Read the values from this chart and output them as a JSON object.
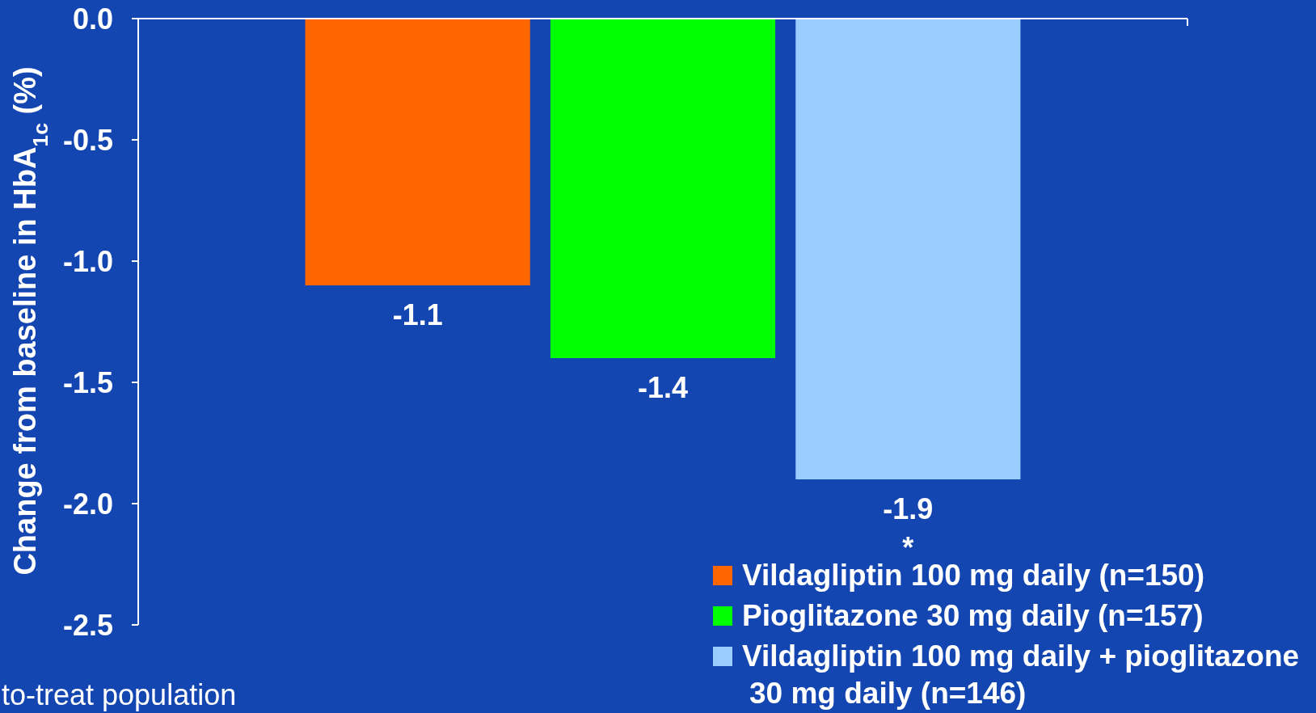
{
  "chart_data": {
    "type": "bar",
    "ylabel": "Change from baseline in HbA$_{1c}$ (%)",
    "categories": [
      null
    ],
    "series": [
      {
        "name": "Vildagliptin 100 mg daily (n=150)",
        "color": "#ff6600",
        "values": [
          -1.1
        ]
      },
      {
        "name": "Pioglitazone 30 mg daily (n=157)",
        "color": "#00ff00",
        "values": [
          -1.4
        ]
      },
      {
        "name": "Vildagliptin 100 mg daily + pioglitazone 30 mg daily (n=146)",
        "color": "#99ccff",
        "values": [
          -1.9
        ]
      }
    ],
    "ylim": [
      -2.5,
      0
    ],
    "yticks": [
      {
        "value": 0,
        "label": "0.0"
      },
      -0.5,
      {
        "value": -1,
        "label": "-1.0"
      },
      -1.5,
      {
        "value": -2,
        "label": "-2.0"
      },
      -2.5
    ],
    "data_labels": true,
    "legend": "bottom right",
    "annotations": [
      {
        "text": "*",
        "y": -1.9
      },
      "to-treat population"
    ]
  }
}
